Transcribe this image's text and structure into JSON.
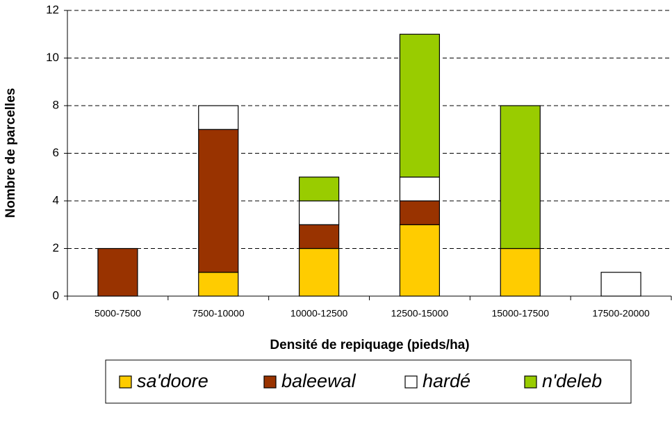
{
  "chart_data": {
    "type": "stacked_bar",
    "x_label": "Densité de repiquage (pieds/ha)",
    "y_label": "Nombre de parcelles",
    "categories": [
      "5000-7500",
      "7500-10000",
      "10000-12500",
      "12500-15000",
      "15000-17500",
      "17500-20000"
    ],
    "series": [
      {
        "name": "sa'doore",
        "color": "#ffcc00",
        "values": [
          0,
          1,
          2,
          3,
          2,
          0
        ]
      },
      {
        "name": "baleewal",
        "color": "#993300",
        "values": [
          2,
          6,
          1,
          1,
          0,
          0
        ]
      },
      {
        "name": "hardé",
        "color": "#ffffff",
        "values": [
          0,
          1,
          1,
          1,
          0,
          1
        ]
      },
      {
        "name": "n'deleb",
        "color": "#99cc00",
        "values": [
          0,
          0,
          1,
          6,
          6,
          0
        ]
      }
    ],
    "ylim": [
      0,
      12
    ],
    "yticks": [
      0,
      2,
      4,
      6,
      8,
      10,
      12
    ],
    "grid": true,
    "legend": "bottom"
  }
}
